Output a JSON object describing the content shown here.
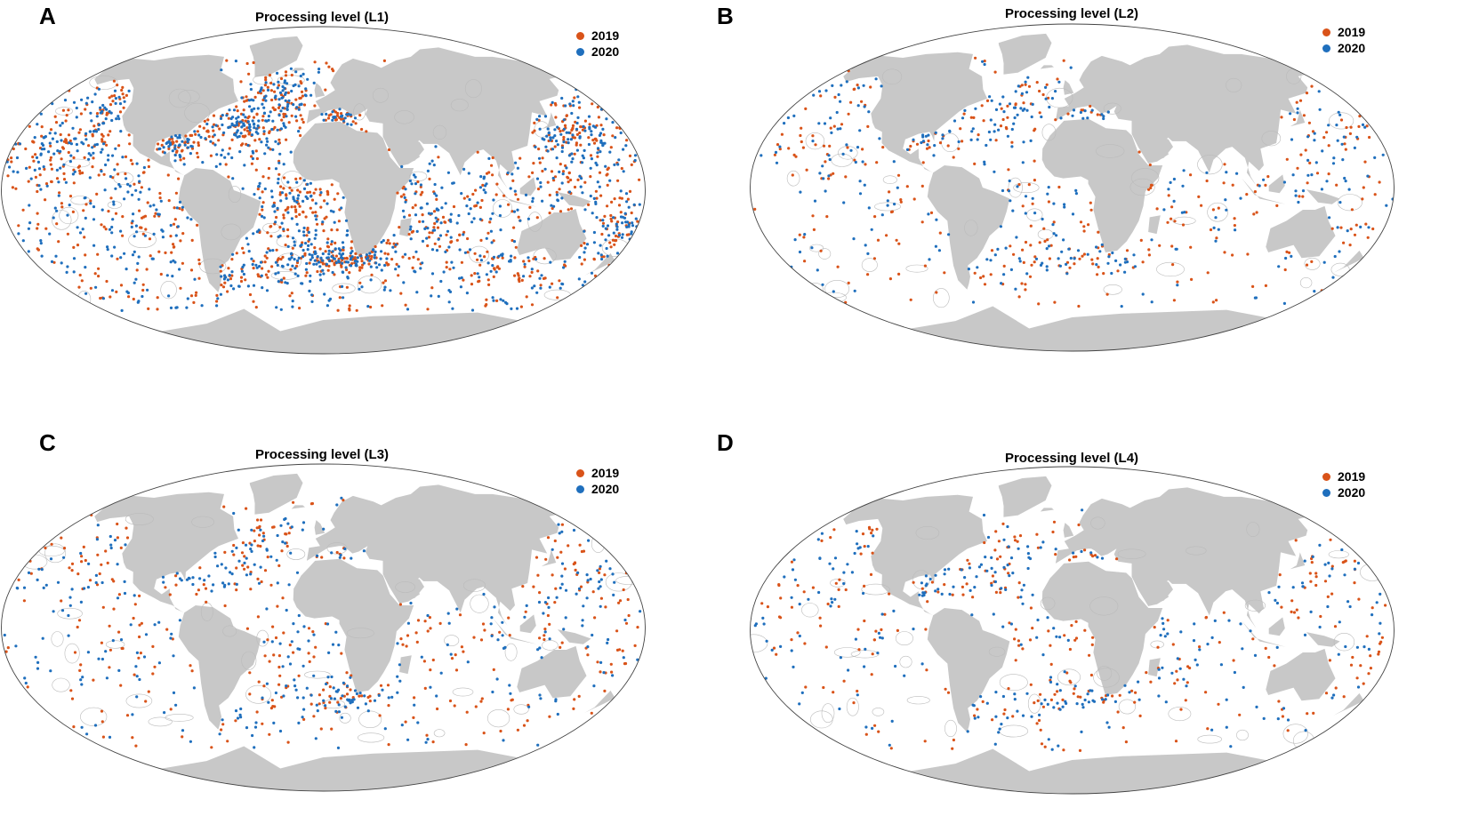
{
  "colors": {
    "year_2019": "#d95319",
    "year_2020": "#1f6fbd",
    "land": "#c8c8c8",
    "ocean": "#ffffff",
    "boundary": "#bbbbbb",
    "frame": "#444444"
  },
  "legend": {
    "item_2019": "2019",
    "item_2020": "2020"
  },
  "panels": [
    {
      "letter": "A",
      "title": "Processing level (L1)",
      "density": 1.0
    },
    {
      "letter": "B",
      "title": "Processing level (L2)",
      "density": 0.3
    },
    {
      "letter": "C",
      "title": "Processing level (L3)",
      "density": 0.33
    },
    {
      "letter": "D",
      "title": "Processing level (L4)",
      "density": 0.26
    }
  ]
}
